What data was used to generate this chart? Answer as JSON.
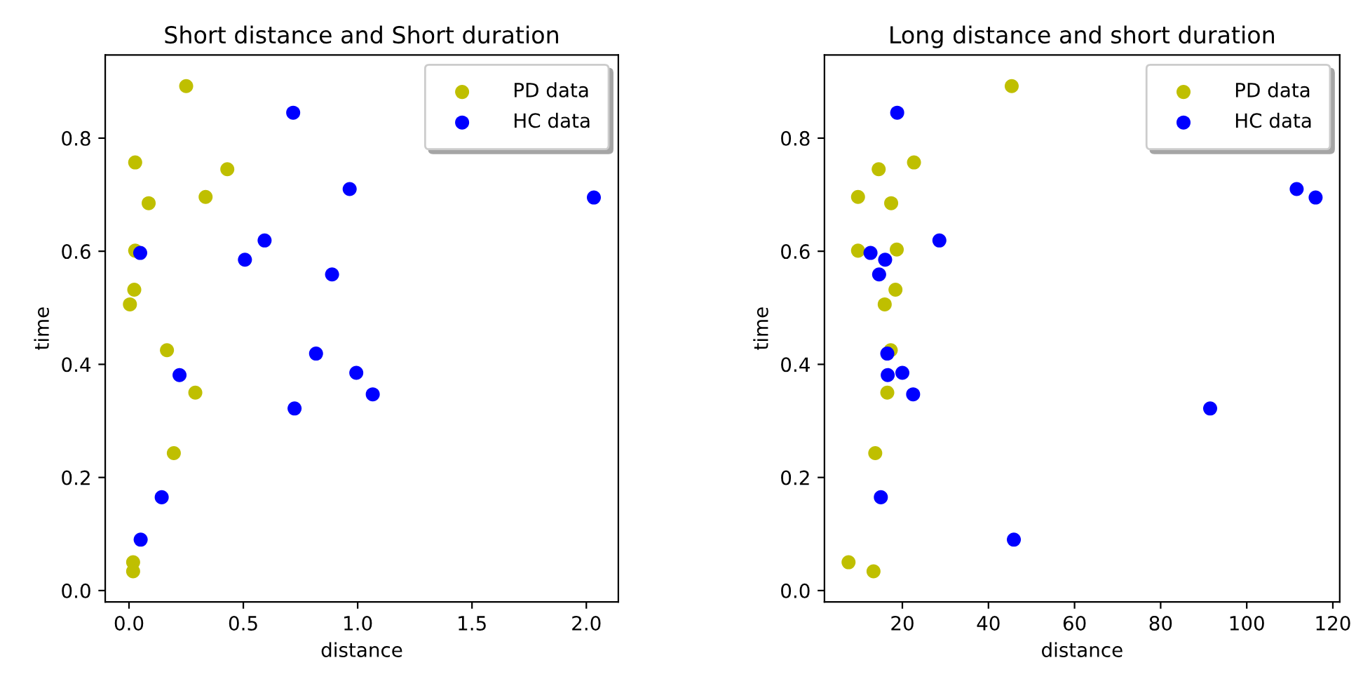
{
  "chart_data": [
    {
      "type": "scatter",
      "title": "Short distance and Short duration",
      "xlabel": "distance",
      "ylabel": "time",
      "xlim": [
        -0.104,
        2.14
      ],
      "ylim": [
        -0.02,
        0.947
      ],
      "xticks": [
        {
          "value": 0,
          "label": "0.0"
        },
        0.5,
        {
          "value": 1,
          "label": "1.0"
        },
        1.5,
        {
          "value": 2,
          "label": "2.0"
        }
      ],
      "yticks": [
        {
          "value": 0,
          "label": "0.0"
        },
        0.2,
        0.4,
        0.6,
        0.8
      ],
      "legend": "top right",
      "marker": "circle",
      "grid": false,
      "series": [
        {
          "name": "PD data",
          "color": "#bfbf00",
          "x": [
            0.25,
            0.027,
            0.086,
            0.335,
            0.43,
            0.027,
            0.023,
            0.004,
            0.166,
            0.29,
            0.196,
            0.018,
            0.018
          ],
          "values": [
            0.892,
            0.757,
            0.685,
            0.696,
            0.745,
            0.601,
            0.532,
            0.506,
            0.425,
            0.35,
            0.243,
            0.05,
            0.034
          ]
        },
        {
          "name": "HC data",
          "color": "#0000ff",
          "x": [
            0.718,
            0.965,
            2.033,
            0.049,
            0.507,
            0.593,
            0.888,
            0.818,
            0.221,
            0.994,
            1.066,
            0.724,
            0.143,
            0.051
          ],
          "values": [
            0.845,
            0.71,
            0.695,
            0.597,
            0.585,
            0.619,
            0.559,
            0.419,
            0.381,
            0.385,
            0.347,
            0.322,
            0.165,
            0.09
          ]
        }
      ]
    },
    {
      "type": "scatter",
      "title": "Long distance and short duration",
      "xlabel": "distance",
      "ylabel": "time",
      "xlim": [
        1.9,
        121.6
      ],
      "ylim": [
        -0.02,
        0.947
      ],
      "xticks": [
        20,
        40,
        60,
        80,
        100,
        120
      ],
      "yticks": [
        {
          "value": 0,
          "label": "0.0"
        },
        0.2,
        0.4,
        0.6,
        0.8
      ],
      "legend": "top right",
      "marker": "circle",
      "grid": false,
      "series": [
        {
          "name": "PD data",
          "color": "#bfbf00",
          "x": [
            45.4,
            22.7,
            14.5,
            9.7,
            17.4,
            9.7,
            18.7,
            18.4,
            15.9,
            17.3,
            16.5,
            13.7,
            7.5,
            13.3
          ],
          "values": [
            0.892,
            0.757,
            0.745,
            0.696,
            0.685,
            0.601,
            0.603,
            0.532,
            0.506,
            0.425,
            0.35,
            0.243,
            0.05,
            0.034
          ]
        },
        {
          "name": "HC data",
          "color": "#0000ff",
          "x": [
            18.8,
            111.6,
            116.0,
            12.6,
            16.0,
            28.6,
            14.6,
            16.5,
            16.6,
            20.0,
            22.5,
            91.5,
            15.0,
            45.9
          ],
          "values": [
            0.845,
            0.71,
            0.695,
            0.597,
            0.585,
            0.619,
            0.559,
            0.419,
            0.381,
            0.385,
            0.347,
            0.322,
            0.165,
            0.09
          ]
        }
      ]
    }
  ]
}
